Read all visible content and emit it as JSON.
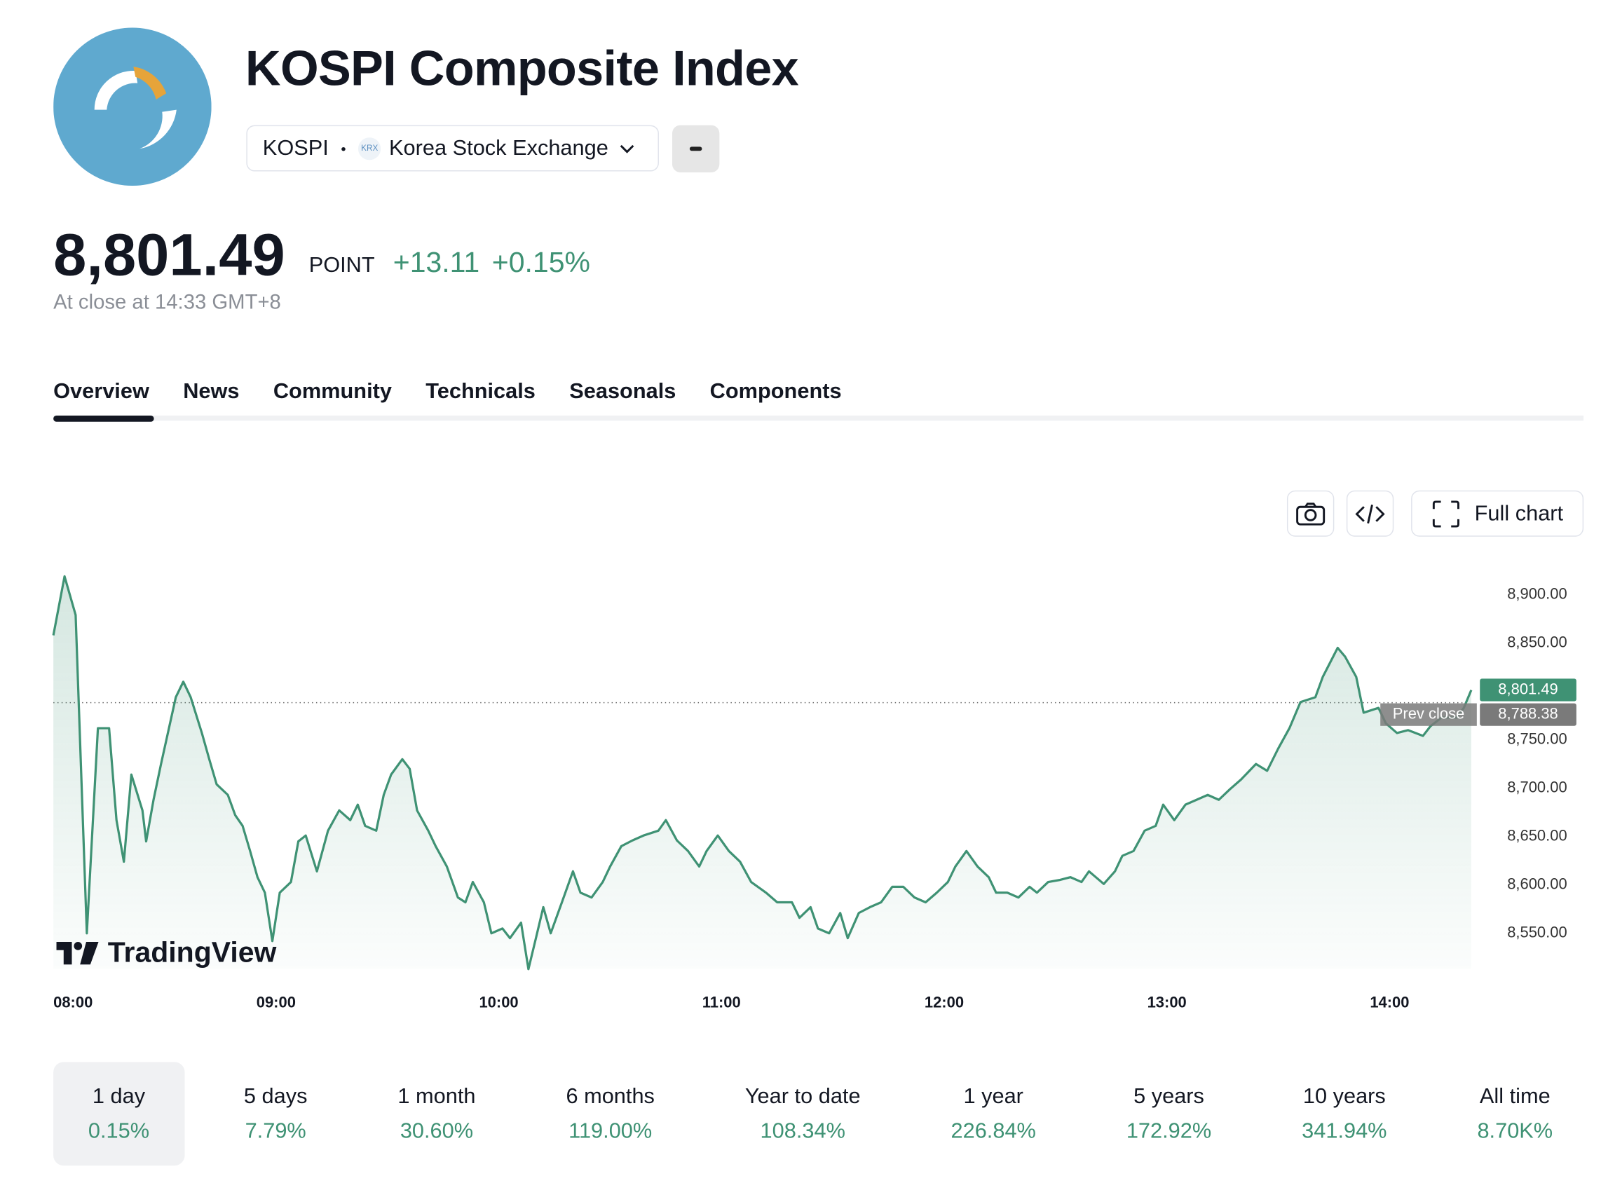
{
  "header": {
    "title": "KOSPI Composite Index",
    "symbol": "KOSPI",
    "exchange_badge": "KRX",
    "exchange": "Korea Stock Exchange"
  },
  "quote": {
    "price": "8,801.49",
    "unit": "POINT",
    "change": "+13.11",
    "change_percent": "+0.15%",
    "status": "At close at 14:33 GMT+8"
  },
  "tabs": [
    "Overview",
    "News",
    "Community",
    "Technicals",
    "Seasonals",
    "Components"
  ],
  "toolbar": {
    "full_chart": "Full chart"
  },
  "chart_data": {
    "type": "line",
    "watermark": "TradingView",
    "x": [
      "08:00",
      "08:03",
      "08:06",
      "08:09",
      "08:12",
      "08:15",
      "08:17",
      "08:19",
      "08:21",
      "08:24",
      "08:25",
      "08:27",
      "08:29",
      "08:33",
      "08:35",
      "08:37",
      "08:40",
      "08:42",
      "08:44",
      "08:47",
      "08:49",
      "08:51",
      "08:53",
      "08:55",
      "08:57",
      "08:59",
      "09:01",
      "09:04",
      "09:06",
      "09:08",
      "09:11",
      "09:14",
      "09:17",
      "09:20",
      "09:22",
      "09:24",
      "09:27",
      "09:29",
      "09:31",
      "09:34",
      "09:36",
      "09:38",
      "09:41",
      "09:43",
      "09:46",
      "09:49",
      "09:51",
      "09:53",
      "09:56",
      "09:58",
      "10:01",
      "10:03",
      "10:06",
      "10:08",
      "10:10",
      "10:12",
      "10:14",
      "10:17",
      "10:20",
      "10:22",
      "10:25",
      "10:28",
      "10:30",
      "10:33",
      "10:36",
      "10:39",
      "10:43",
      "10:45",
      "10:48",
      "10:51",
      "10:54",
      "10:56",
      "10:59",
      "11:02",
      "11:05",
      "11:08",
      "11:12",
      "11:15",
      "11:19",
      "11:21",
      "11:24",
      "11:26",
      "11:29",
      "11:32",
      "11:34",
      "11:37",
      "11:40",
      "11:43",
      "11:46",
      "11:49",
      "11:52",
      "11:55",
      "11:58",
      "12:01",
      "12:03",
      "12:06",
      "12:09",
      "12:12",
      "12:14",
      "12:17",
      "12:20",
      "12:23",
      "12:25",
      "12:28",
      "12:31",
      "12:34",
      "12:37",
      "12:39",
      "12:43",
      "12:46",
      "12:48",
      "12:51",
      "12:54",
      "12:57",
      "12:59",
      "13:02",
      "13:05",
      "13:08",
      "13:11",
      "13:14",
      "13:17",
      "13:20",
      "13:24",
      "13:27",
      "13:30",
      "13:33",
      "13:36",
      "13:40",
      "13:42",
      "13:46",
      "13:48",
      "13:51",
      "13:53",
      "13:57",
      "13:59",
      "14:02",
      "14:05",
      "14:09",
      "14:11",
      "14:14",
      "14:18",
      "14:20",
      "14:22"
    ],
    "series": [
      {
        "name": "KOSPI",
        "color": "#3f9274",
        "values": [
          8858,
          8919,
          8879,
          8550,
          8762,
          8762,
          8667,
          8624,
          8714,
          8677,
          8645,
          8688,
          8725,
          8794,
          8810,
          8794,
          8757,
          8730,
          8704,
          8693,
          8672,
          8661,
          8635,
          8608,
          8592,
          8542,
          8592,
          8603,
          8645,
          8651,
          8614,
          8656,
          8677,
          8667,
          8683,
          8661,
          8656,
          8693,
          8714,
          8730,
          8720,
          8677,
          8656,
          8640,
          8619,
          8587,
          8582,
          8603,
          8582,
          8550,
          8555,
          8545,
          8561,
          8513,
          8545,
          8577,
          8550,
          8582,
          8614,
          8592,
          8587,
          8603,
          8619,
          8640,
          8646,
          8651,
          8656,
          8667,
          8646,
          8635,
          8619,
          8635,
          8651,
          8635,
          8624,
          8603,
          8592,
          8582,
          8582,
          8566,
          8577,
          8555,
          8550,
          8571,
          8545,
          8571,
          8577,
          8582,
          8598,
          8598,
          8587,
          8582,
          8592,
          8603,
          8619,
          8635,
          8619,
          8608,
          8592,
          8592,
          8587,
          8598,
          8592,
          8603,
          8605,
          8608,
          8603,
          8614,
          8601,
          8614,
          8630,
          8635,
          8656,
          8661,
          8683,
          8667,
          8683,
          8688,
          8693,
          8688,
          8699,
          8709,
          8725,
          8718,
          8741,
          8762,
          8789,
          8794,
          8815,
          8845,
          8836,
          8815,
          8778,
          8783,
          8767,
          8757,
          8760,
          8754,
          8764,
          8773,
          8773,
          8783,
          8801.49
        ]
      }
    ],
    "ylim": [
      8505,
      8925
    ],
    "yticks": [
      {
        "value": 8550,
        "label": "8,550.00"
      },
      {
        "value": 8600,
        "label": "8,600.00"
      },
      {
        "value": 8650,
        "label": "8,650.00"
      },
      {
        "value": 8700,
        "label": "8,700.00"
      },
      {
        "value": 8750,
        "label": "8,750.00"
      },
      {
        "value": 8800,
        "label": "8,800.00"
      },
      {
        "value": 8850,
        "label": "8,850.00"
      },
      {
        "value": 8900,
        "label": "8,900.00"
      }
    ],
    "xticks": [
      "08:00",
      "09:00",
      "10:00",
      "11:00",
      "12:00",
      "13:00",
      "14:00"
    ],
    "price_tag": {
      "value": 8801.49,
      "label": "8,801.49",
      "color": "#3f9274"
    },
    "prev_close": {
      "name": "Prev close",
      "value": 8788.38,
      "label": "8,788.38",
      "color": "#7a7a7a"
    }
  },
  "periods": [
    {
      "label": "1 day",
      "change": "0.15%"
    },
    {
      "label": "5 days",
      "change": "7.79%"
    },
    {
      "label": "1 month",
      "change": "30.60%"
    },
    {
      "label": "6 months",
      "change": "119.00%"
    },
    {
      "label": "Year to date",
      "change": "108.34%"
    },
    {
      "label": "1 year",
      "change": "226.84%"
    },
    {
      "label": "5 years",
      "change": "172.92%"
    },
    {
      "label": "10 years",
      "change": "341.94%"
    },
    {
      "label": "All time",
      "change": "8.70K%"
    }
  ]
}
